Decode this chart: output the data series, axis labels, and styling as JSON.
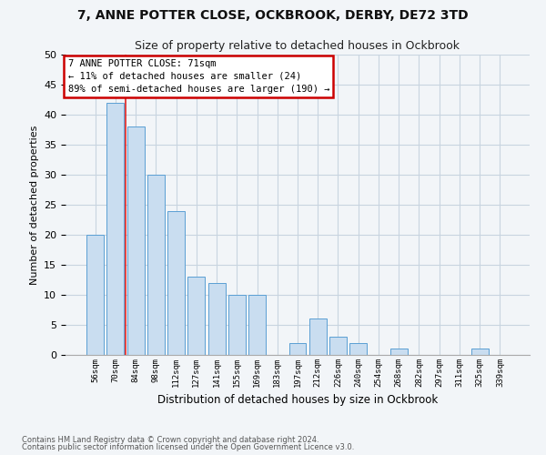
{
  "title1": "7, ANNE POTTER CLOSE, OCKBROOK, DERBY, DE72 3TD",
  "title2": "Size of property relative to detached houses in Ockbrook",
  "xlabel": "Distribution of detached houses by size in Ockbrook",
  "ylabel": "Number of detached properties",
  "categories": [
    "56sqm",
    "70sqm",
    "84sqm",
    "98sqm",
    "112sqm",
    "127sqm",
    "141sqm",
    "155sqm",
    "169sqm",
    "183sqm",
    "197sqm",
    "212sqm",
    "226sqm",
    "240sqm",
    "254sqm",
    "268sqm",
    "282sqm",
    "297sqm",
    "311sqm",
    "325sqm",
    "339sqm"
  ],
  "values": [
    20,
    42,
    38,
    30,
    24,
    13,
    12,
    10,
    10,
    0,
    2,
    6,
    3,
    2,
    0,
    1,
    0,
    0,
    0,
    1,
    0
  ],
  "bar_color": "#c9ddf0",
  "bar_edge_color": "#5a9fd4",
  "vline_color": "#dd2222",
  "vline_x": 1.5,
  "annotation_text": "7 ANNE POTTER CLOSE: 71sqm\n← 11% of detached houses are smaller (24)\n89% of semi-detached houses are larger (190) →",
  "annotation_box_color": "white",
  "annotation_box_edge": "#cc0000",
  "ylim": [
    0,
    50
  ],
  "yticks": [
    0,
    5,
    10,
    15,
    20,
    25,
    30,
    35,
    40,
    45,
    50
  ],
  "bg_color": "#f2f5f8",
  "plot_bg_color": "#f2f5f8",
  "grid_color": "#c8d4e0",
  "footer1": "Contains HM Land Registry data © Crown copyright and database right 2024.",
  "footer2": "Contains public sector information licensed under the Open Government Licence v3.0."
}
